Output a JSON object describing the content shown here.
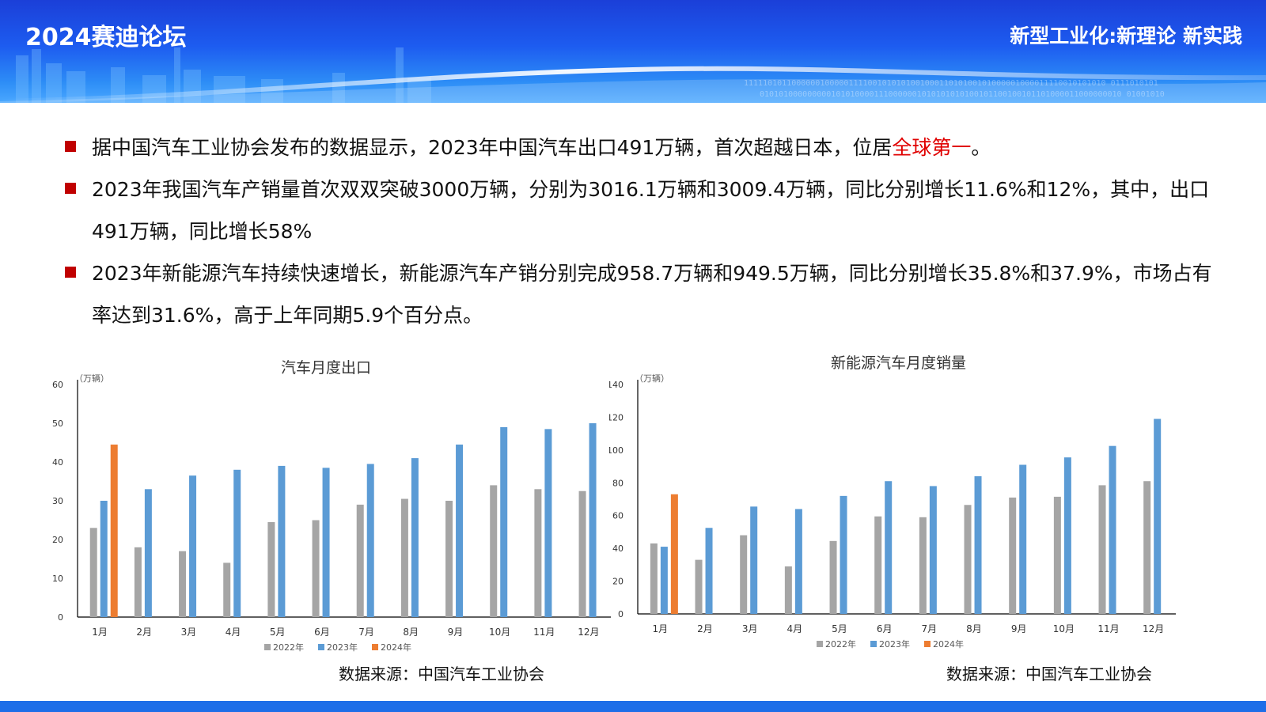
{
  "header": {
    "logo": "2024赛迪论坛",
    "slogan": "新型工业化:新理论 新实践"
  },
  "bullets": [
    {
      "before": "据中国汽车工业协会发布的数据显示，2023年中国汽车出口491万辆，首次超越日本，位居",
      "highlight": "全球第一",
      "after": "。"
    },
    {
      "before": "2023年我国汽车产销量首次双双突破3000万辆，分别为3016.1万辆和3009.4万辆，同比分别增长11.6%和12%，其中，出口491万辆，同比增长58%",
      "highlight": "",
      "after": ""
    },
    {
      "before": "2023年新能源汽车持续快速增长，新能源汽车产销分别完成958.7万辆和949.5万辆，同比分别增长35.8%和37.9%，市场占有率达到31.6%，高于上年同期5.9个百分点。",
      "highlight": "",
      "after": ""
    }
  ],
  "colors": {
    "s2022": "#a5a5a5",
    "s2023": "#5b9bd5",
    "s2024": "#ed7d31",
    "highlight": "#e00000"
  },
  "chart_data": [
    {
      "type": "bar",
      "title": "汽车月度出口",
      "unit": "（万辆）",
      "ylim": [
        0,
        60
      ],
      "yticks": [
        0,
        10,
        20,
        30,
        40,
        50,
        60
      ],
      "categories": [
        "1月",
        "2月",
        "3月",
        "4月",
        "5月",
        "6月",
        "7月",
        "8月",
        "9月",
        "10月",
        "11月",
        "12月"
      ],
      "series": [
        {
          "name": "2022年",
          "color": "#a5a5a5",
          "values": [
            23,
            18,
            17,
            14,
            24.5,
            25,
            29,
            30.5,
            30,
            34,
            33,
            32.5
          ]
        },
        {
          "name": "2023年",
          "color": "#5b9bd5",
          "values": [
            30,
            33,
            36.5,
            38,
            39,
            38.5,
            39.5,
            41,
            44.5,
            49,
            48.5,
            50
          ]
        },
        {
          "name": "2024年",
          "color": "#ed7d31",
          "values": [
            44.5,
            null,
            null,
            null,
            null,
            null,
            null,
            null,
            null,
            null,
            null,
            null
          ]
        }
      ],
      "source": "数据来源：中国汽车工业协会"
    },
    {
      "type": "bar",
      "title": "新能源汽车月度销量",
      "unit": "（万辆）",
      "ylim": [
        0,
        140
      ],
      "yticks": [
        0,
        20,
        40,
        60,
        80,
        100,
        120,
        140
      ],
      "categories": [
        "1月",
        "2月",
        "3月",
        "4月",
        "5月",
        "6月",
        "7月",
        "8月",
        "9月",
        "10月",
        "11月",
        "12月"
      ],
      "series": [
        {
          "name": "2022年",
          "color": "#a5a5a5",
          "values": [
            43,
            33,
            48,
            29,
            44.5,
            59.5,
            59,
            66.5,
            71,
            71.5,
            78.5,
            81
          ]
        },
        {
          "name": "2023年",
          "color": "#5b9bd5",
          "values": [
            41,
            52.5,
            65.5,
            64,
            72,
            81,
            78,
            84,
            91,
            95.5,
            102.5,
            119
          ]
        },
        {
          "name": "2024年",
          "color": "#ed7d31",
          "values": [
            73,
            null,
            null,
            null,
            null,
            null,
            null,
            null,
            null,
            null,
            null,
            null
          ]
        }
      ],
      "source": "数据来源：中国汽车工业协会"
    }
  ]
}
